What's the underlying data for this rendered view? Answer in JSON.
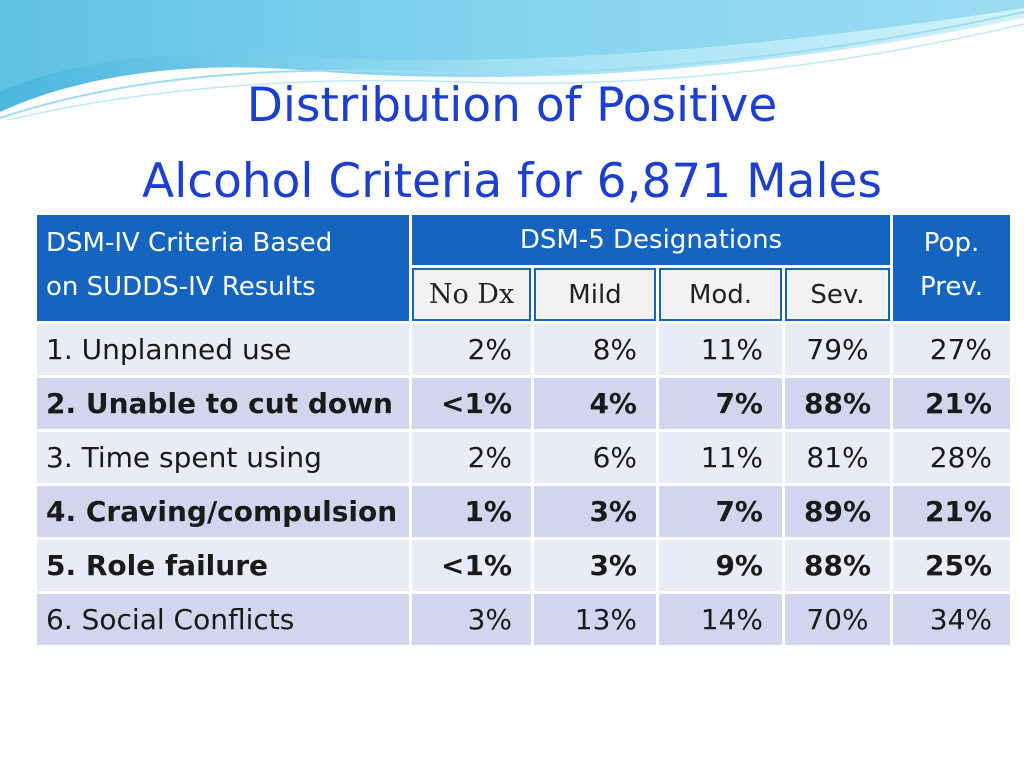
{
  "title": {
    "line1": "Distribution of Positive",
    "line2": "Alcohol Criteria for 6,871 Males"
  },
  "colors": {
    "title": "#1d3fcf",
    "header_bg": "#1565c0",
    "row_light": "#e9ebf6",
    "row_dark": "#d1d5ee",
    "wave": "#4fc3e8"
  },
  "table": {
    "header_left_line1": "DSM-IV Criteria Based",
    "header_left_line2": "on SUDDS-IV Results",
    "header_group": "DSM-5 Designations",
    "header_right_line1": "Pop.",
    "header_right_line2": "Prev.",
    "sub_headers": [
      "No Dx",
      "Mild",
      "Mod.",
      "Sev."
    ],
    "rows": [
      {
        "label": "1. Unplanned use",
        "no_dx": "2%",
        "mild": "8%",
        "mod": "11%",
        "sev": "79%",
        "prev": "27%",
        "bold": false
      },
      {
        "label": "2. Unable to cut down",
        "no_dx": "<1%",
        "mild": "4%",
        "mod": "7%",
        "sev": "88%",
        "prev": "21%",
        "bold": true
      },
      {
        "label": "3. Time spent using",
        "no_dx": "2%",
        "mild": "6%",
        "mod": "11%",
        "sev": "81%",
        "prev": "28%",
        "bold": false
      },
      {
        "label": "4. Craving/compulsion",
        "no_dx": "1%",
        "mild": "3%",
        "mod": "7%",
        "sev": "89%",
        "prev": "21%",
        "bold": true
      },
      {
        "label": "5. Role failure",
        "no_dx": "<1%",
        "mild": "3%",
        "mod": "9%",
        "sev": "88%",
        "prev": "25%",
        "bold": true
      },
      {
        "label": "6.  Social Conflicts",
        "no_dx": "3%",
        "mild": "13%",
        "mod": "14%",
        "sev": "70%",
        "prev": "34%",
        "bold": false
      }
    ]
  }
}
